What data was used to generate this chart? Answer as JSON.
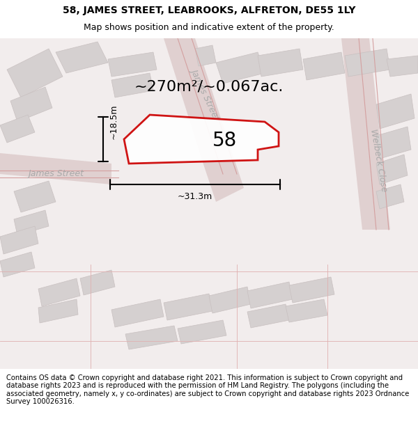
{
  "title_line1": "58, JAMES STREET, LEABROOKS, ALFRETON, DE55 1LY",
  "title_line2": "Map shows position and indicative extent of the property.",
  "area_text": "~270m²/~0.067ac.",
  "label_58": "58",
  "width_label": "~31.3m",
  "height_label": "~18.5m",
  "footer": "Contains OS data © Crown copyright and database right 2021. This information is subject to Crown copyright and database rights 2023 and is reproduced with the permission of HM Land Registry. The polygons (including the associated geometry, namely x, y co-ordinates) are subject to Crown copyright and database rights 2023 Ordnance Survey 100026316.",
  "bg_color": "#f5f0f0",
  "map_bg": "#f0eeee",
  "plot_color_fill": "#e8e0e0",
  "plot_color_stroke": "#cc0000",
  "road_color": "#e8c0c0",
  "building_color": "#d8d0d0",
  "street_label_color": "#aaaaaa",
  "james_street_diagonal_label": "James Street",
  "welbeck_close_label": "Welbeck Close",
  "james_street_left_label": "James Street",
  "footer_fontsize": 7.2,
  "title_fontsize": 10,
  "subtitle_fontsize": 9
}
